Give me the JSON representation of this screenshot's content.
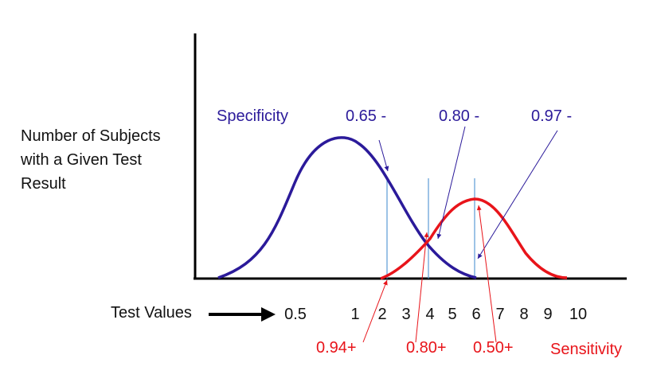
{
  "ylabel": [
    "Number of Subjects",
    "with a Given Test",
    "Result"
  ],
  "xlabel": "Test Values",
  "colors": {
    "specificity": "#2b1a9a",
    "sensitivity": "#e8141a",
    "axis": "#000000",
    "cutoff": "#5b9bd5"
  },
  "specificity_label": "Specificity",
  "sensitivity_label": "Sensitivity",
  "tick_labels": [
    "0.5",
    "1",
    "2",
    "3",
    "4",
    "5",
    "6",
    "7",
    "8",
    "9",
    "10"
  ],
  "chart_data": {
    "type": "line",
    "series": [
      {
        "name": "Specificity",
        "x": [
          0.5,
          1,
          2,
          3,
          4,
          5,
          6
        ],
        "y": [
          0.0,
          0.45,
          1.0,
          0.7,
          0.2,
          0.05,
          0.0
        ]
      },
      {
        "name": "Sensitivity",
        "x": [
          2,
          3,
          4,
          5,
          6,
          7,
          8,
          9,
          10
        ],
        "y": [
          0.0,
          0.08,
          0.25,
          0.8,
          1.0,
          0.8,
          0.28,
          0.04,
          0.0
        ]
      }
    ],
    "cutoffs": [
      2,
      4,
      6
    ],
    "specificity_values": [
      "0.65 -",
      "0.80 -",
      "0.97 -"
    ],
    "sensitivity_values": [
      "0.94+",
      "0.80+",
      "0.50+"
    ]
  }
}
